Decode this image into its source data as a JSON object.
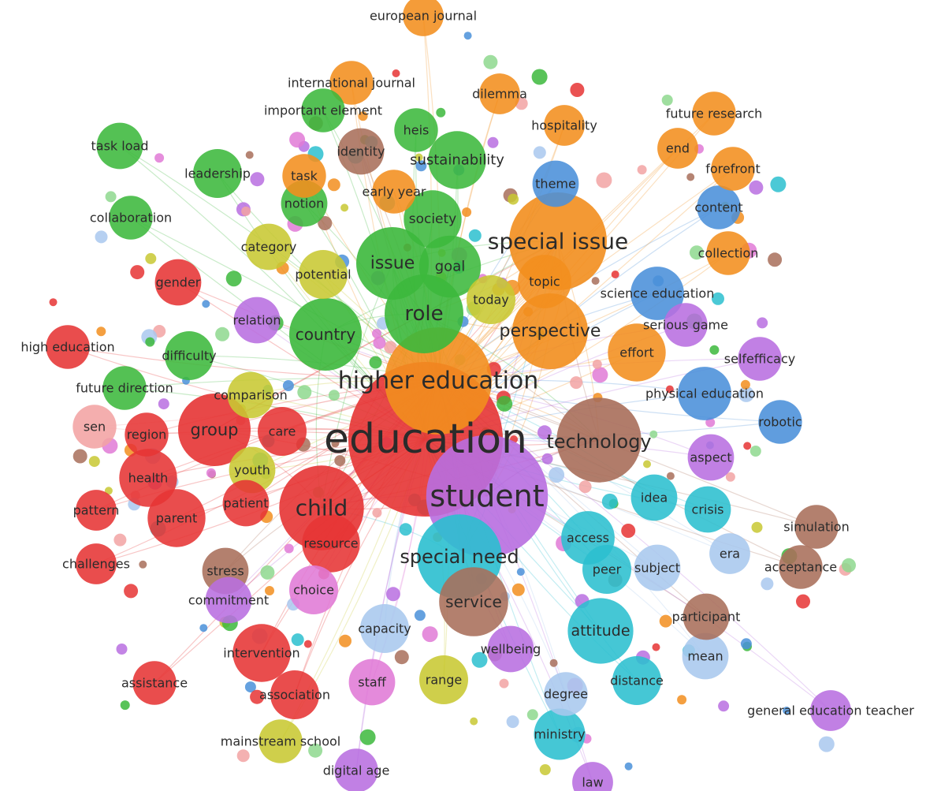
{
  "clusters": {
    "red": "#e63434",
    "green": "#3cb83c",
    "blue": "#4a90d9",
    "orange": "#f28e1e",
    "purple": "#b86ee0",
    "cyan": "#2bbfcf",
    "brown": "#a86e5a",
    "pink": "#e07ad6",
    "olive": "#c8c832",
    "lightred": "#f2a3a3",
    "lightgreen": "#8ed88e",
    "lightblue": "#a9c8ee"
  },
  "terms": [
    {
      "id": "education",
      "label": "education",
      "cluster": "red",
      "weight": 100
    },
    {
      "id": "higher-education",
      "label": "higher education",
      "cluster": "orange",
      "weight": 48
    },
    {
      "id": "student",
      "label": "student",
      "cluster": "purple",
      "weight": 62
    },
    {
      "id": "special-issue",
      "label": "special issue",
      "cluster": "orange",
      "weight": 40
    },
    {
      "id": "technology",
      "label": "technology",
      "cluster": "brown",
      "weight": 30
    },
    {
      "id": "special-need",
      "label": "special need",
      "cluster": "cyan",
      "weight": 30
    },
    {
      "id": "child",
      "label": "child",
      "cluster": "red",
      "weight": 30
    },
    {
      "id": "role",
      "label": "role",
      "cluster": "green",
      "weight": 26
    },
    {
      "id": "issue",
      "label": "issue",
      "cluster": "green",
      "weight": 22
    },
    {
      "id": "perspective",
      "label": "perspective",
      "cluster": "orange",
      "weight": 24
    },
    {
      "id": "country",
      "label": "country",
      "cluster": "green",
      "weight": 22
    },
    {
      "id": "group",
      "label": "group",
      "cluster": "red",
      "weight": 22
    },
    {
      "id": "goal",
      "label": "goal",
      "cluster": "green",
      "weight": 16
    },
    {
      "id": "sustainability",
      "label": "sustainability",
      "cluster": "green",
      "weight": 14
    },
    {
      "id": "society",
      "label": "society",
      "cluster": "green",
      "weight": 14
    },
    {
      "id": "service",
      "label": "service",
      "cluster": "brown",
      "weight": 20
    },
    {
      "id": "attitude",
      "label": "attitude",
      "cluster": "cyan",
      "weight": 18
    },
    {
      "id": "health",
      "label": "health",
      "cluster": "red",
      "weight": 14
    },
    {
      "id": "parent",
      "label": "parent",
      "cluster": "red",
      "weight": 14
    },
    {
      "id": "resource",
      "label": "resource",
      "cluster": "red",
      "weight": 14
    },
    {
      "id": "intervention",
      "label": "intervention",
      "cluster": "red",
      "weight": 14
    },
    {
      "id": "access",
      "label": "access",
      "cluster": "cyan",
      "weight": 12
    },
    {
      "id": "science-education",
      "label": "science education",
      "cluster": "blue",
      "weight": 12
    },
    {
      "id": "physical-education",
      "label": "physical education",
      "cluster": "blue",
      "weight": 12
    },
    {
      "id": "effort",
      "label": "effort",
      "cluster": "orange",
      "weight": 14
    },
    {
      "id": "topic",
      "label": "topic",
      "cluster": "orange",
      "weight": 12
    },
    {
      "id": "today",
      "label": "today",
      "cluster": "olive",
      "weight": 10
    },
    {
      "id": "potential",
      "label": "potential",
      "cluster": "olive",
      "weight": 10
    },
    {
      "id": "category",
      "label": "category",
      "cluster": "olive",
      "weight": 9
    },
    {
      "id": "notion",
      "label": "notion",
      "cluster": "green",
      "weight": 9
    },
    {
      "id": "leadership",
      "label": "leadership",
      "cluster": "green",
      "weight": 10
    },
    {
      "id": "task-load",
      "label": "task load",
      "cluster": "green",
      "weight": 9
    },
    {
      "id": "collaboration",
      "label": "collaboration",
      "cluster": "green",
      "weight": 8
    },
    {
      "id": "gender",
      "label": "gender",
      "cluster": "red",
      "weight": 9
    },
    {
      "id": "relation",
      "label": "relation",
      "cluster": "purple",
      "weight": 9
    },
    {
      "id": "difficulty",
      "label": "difficulty",
      "cluster": "green",
      "weight": 10
    },
    {
      "id": "high-education",
      "label": "high education",
      "cluster": "red",
      "weight": 8
    },
    {
      "id": "future-direction",
      "label": "future direction",
      "cluster": "green",
      "weight": 8
    },
    {
      "id": "comparison",
      "label": "comparison",
      "cluster": "olive",
      "weight": 9
    },
    {
      "id": "sen",
      "label": "sen",
      "cluster": "lightred",
      "weight": 8
    },
    {
      "id": "region",
      "label": "region",
      "cluster": "red",
      "weight": 8
    },
    {
      "id": "care",
      "label": "care",
      "cluster": "red",
      "weight": 10
    },
    {
      "id": "youth",
      "label": "youth",
      "cluster": "olive",
      "weight": 9
    },
    {
      "id": "patient",
      "label": "patient",
      "cluster": "red",
      "weight": 9
    },
    {
      "id": "pattern",
      "label": "pattern",
      "cluster": "red",
      "weight": 7
    },
    {
      "id": "challenges",
      "label": "challenges",
      "cluster": "red",
      "weight": 7
    },
    {
      "id": "stress",
      "label": "stress",
      "cluster": "brown",
      "weight": 9
    },
    {
      "id": "commitment",
      "label": "commitment",
      "cluster": "purple",
      "weight": 9
    },
    {
      "id": "choice",
      "label": "choice",
      "cluster": "pink",
      "weight": 10
    },
    {
      "id": "assistance",
      "label": "assistance",
      "cluster": "red",
      "weight": 8
    },
    {
      "id": "association",
      "label": "association",
      "cluster": "red",
      "weight": 10
    },
    {
      "id": "staff",
      "label": "staff",
      "cluster": "pink",
      "weight": 9
    },
    {
      "id": "capacity",
      "label": "capacity",
      "cluster": "lightblue",
      "weight": 10
    },
    {
      "id": "range",
      "label": "range",
      "cluster": "olive",
      "weight": 10
    },
    {
      "id": "wellbeing",
      "label": "wellbeing",
      "cluster": "purple",
      "weight": 9
    },
    {
      "id": "degree",
      "label": "degree",
      "cluster": "lightblue",
      "weight": 8
    },
    {
      "id": "ministry",
      "label": "ministry",
      "cluster": "cyan",
      "weight": 11
    },
    {
      "id": "mainstream-school",
      "label": "mainstream school",
      "cluster": "olive",
      "weight": 8
    },
    {
      "id": "digital-age",
      "label": "digital age",
      "cluster": "purple",
      "weight": 8
    },
    {
      "id": "law",
      "label": "law",
      "cluster": "purple",
      "weight": 7
    },
    {
      "id": "distance",
      "label": "distance",
      "cluster": "cyan",
      "weight": 10
    },
    {
      "id": "mean",
      "label": "mean",
      "cluster": "lightblue",
      "weight": 9
    },
    {
      "id": "participant",
      "label": "participant",
      "cluster": "brown",
      "weight": 9
    },
    {
      "id": "subject",
      "label": "subject",
      "cluster": "lightblue",
      "weight": 9
    },
    {
      "id": "peer",
      "label": "peer",
      "cluster": "cyan",
      "weight": 10
    },
    {
      "id": "idea",
      "label": "idea",
      "cluster": "cyan",
      "weight": 9
    },
    {
      "id": "crisis",
      "label": "crisis",
      "cluster": "cyan",
      "weight": 9
    },
    {
      "id": "aspect",
      "label": "aspect",
      "cluster": "purple",
      "weight": 9
    },
    {
      "id": "era",
      "label": "era",
      "cluster": "lightblue",
      "weight": 7
    },
    {
      "id": "acceptance",
      "label": "acceptance",
      "cluster": "brown",
      "weight": 8
    },
    {
      "id": "simulation",
      "label": "simulation",
      "cluster": "brown",
      "weight": 8
    },
    {
      "id": "general-education-teacher",
      "label": "general education teacher",
      "cluster": "purple",
      "weight": 7
    },
    {
      "id": "robotic",
      "label": "robotic",
      "cluster": "blue",
      "weight": 8
    },
    {
      "id": "selfefficacy",
      "label": "selfefficacy",
      "cluster": "purple",
      "weight": 8
    },
    {
      "id": "serious-game",
      "label": "serious game",
      "cluster": "purple",
      "weight": 8
    },
    {
      "id": "collection",
      "label": "collection",
      "cluster": "orange",
      "weight": 8
    },
    {
      "id": "content",
      "label": "content",
      "cluster": "blue",
      "weight": 8
    },
    {
      "id": "forefront",
      "label": "forefront",
      "cluster": "orange",
      "weight": 8
    },
    {
      "id": "end",
      "label": "end",
      "cluster": "orange",
      "weight": 7
    },
    {
      "id": "future-research",
      "label": "future research",
      "cluster": "orange",
      "weight": 8
    },
    {
      "id": "theme",
      "label": "theme",
      "cluster": "blue",
      "weight": 9
    },
    {
      "id": "hospitality",
      "label": "hospitality",
      "cluster": "orange",
      "weight": 7
    },
    {
      "id": "dilemma",
      "label": "dilemma",
      "cluster": "orange",
      "weight": 7
    },
    {
      "id": "european-journal",
      "label": "european journal",
      "cluster": "orange",
      "weight": 7
    },
    {
      "id": "international-journal",
      "label": "international journal",
      "cluster": "orange",
      "weight": 8
    },
    {
      "id": "important-element",
      "label": "important element",
      "cluster": "green",
      "weight": 8
    },
    {
      "id": "heis",
      "label": "heis",
      "cluster": "green",
      "weight": 8
    },
    {
      "id": "identity",
      "label": "identity",
      "cluster": "brown",
      "weight": 9
    },
    {
      "id": "task",
      "label": "task",
      "cluster": "orange",
      "weight": 8
    },
    {
      "id": "early-year",
      "label": "early year",
      "cluster": "orange",
      "weight": 8
    }
  ]
}
